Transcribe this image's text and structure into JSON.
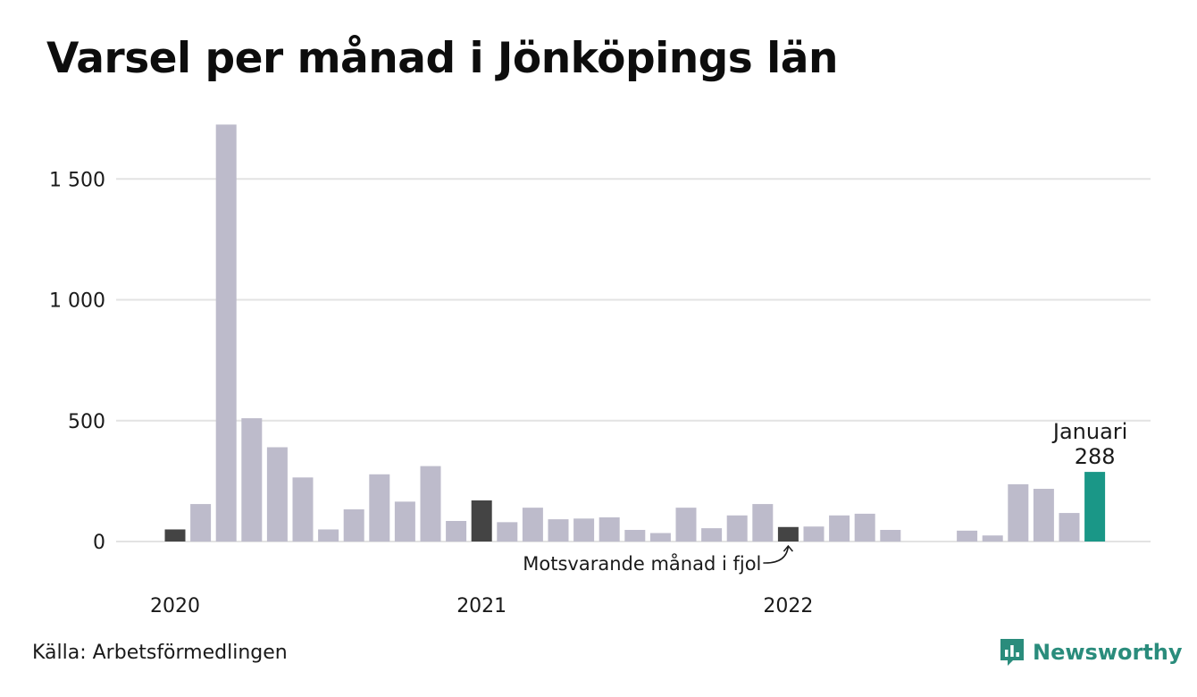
{
  "title": "Varsel per månad i Jönköpings län",
  "source": "Källa: Arbetsförmedlingen",
  "brand": {
    "name": "Newsworthy",
    "icon": "newsworthy-logo-icon"
  },
  "colors": {
    "bar": "#bdbbcb",
    "comparison": "#444444",
    "highlight": "#1a9787",
    "grid": "#e3e3e3",
    "brand": "#2a8c7c"
  },
  "chart_data": {
    "type": "bar",
    "title": "Varsel per månad i Jönköpings län",
    "xlabel": "",
    "ylabel": "",
    "ylim": [
      0,
      1700
    ],
    "yticks": [
      0,
      500,
      1000,
      1500
    ],
    "ytick_labels": [
      "0",
      "500",
      "1 000",
      "1 500"
    ],
    "grid": true,
    "x_year_labels": [
      {
        "label": "2020",
        "index": 0
      },
      {
        "label": "2021",
        "index": 12
      },
      {
        "label": "2022",
        "index": 24
      }
    ],
    "categories": [
      "2020-01",
      "2020-02",
      "2020-03",
      "2020-04",
      "2020-05",
      "2020-06",
      "2020-07",
      "2020-08",
      "2020-09",
      "2020-10",
      "2020-11",
      "2020-12",
      "2021-01",
      "2021-02",
      "2021-03",
      "2021-04",
      "2021-05",
      "2021-06",
      "2021-07",
      "2021-08",
      "2021-09",
      "2021-10",
      "2021-11",
      "2021-12",
      "2022-01",
      "2022-02",
      "2022-03",
      "2022-04",
      "2022-05",
      "2022-06",
      "2022-07",
      "2022-08",
      "2022-09",
      "2022-10",
      "2022-11",
      "2022-12",
      "2023-01"
    ],
    "values": [
      50,
      155,
      1725,
      510,
      390,
      265,
      50,
      133,
      278,
      165,
      312,
      85,
      170,
      80,
      140,
      92,
      95,
      100,
      48,
      35,
      140,
      55,
      108,
      155,
      60,
      62,
      108,
      115,
      48,
      0,
      0,
      45,
      25,
      237,
      218,
      118,
      288
    ],
    "comparison_indices": [
      0,
      12,
      24
    ],
    "highlight_index": 36,
    "annotations": {
      "highlight_month": "Januari",
      "highlight_value": "288",
      "comparison_note": "Motsvarande månad i fjol"
    }
  }
}
